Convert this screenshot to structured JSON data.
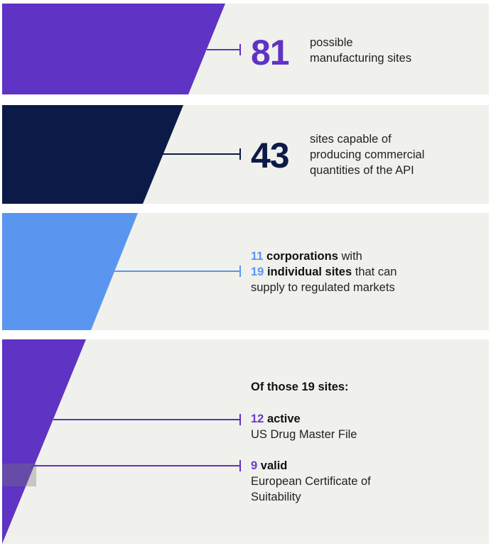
{
  "colors": {
    "panel_bg": "#f0f0ec",
    "purple": "#5f33c3",
    "navy": "#0c1a47",
    "light_blue": "#5a96f0",
    "text": "#222222"
  },
  "stage1": {
    "number": "81",
    "desc_line1": "possible",
    "desc_line2": "manufacturing sites"
  },
  "stage2": {
    "number": "43",
    "desc_line1": "sites capable of",
    "desc_line2": "producing commercial",
    "desc_line3": "quantities of the API"
  },
  "stage3": {
    "corp_count": "11",
    "corp_label": "corporations",
    "corp_suffix": " with",
    "site_count": "19",
    "site_label": "individual sites",
    "site_suffix": " that can",
    "line3": "supply to regulated markets"
  },
  "stage4": {
    "heading": "Of those 19 sites:",
    "dmf_count": "12",
    "dmf_label": "active",
    "dmf_desc": "US Drug Master File",
    "cep_count": "9",
    "cep_label": "valid",
    "cep_desc_line1": "European Certificate of",
    "cep_desc_line2": "Suitability"
  }
}
